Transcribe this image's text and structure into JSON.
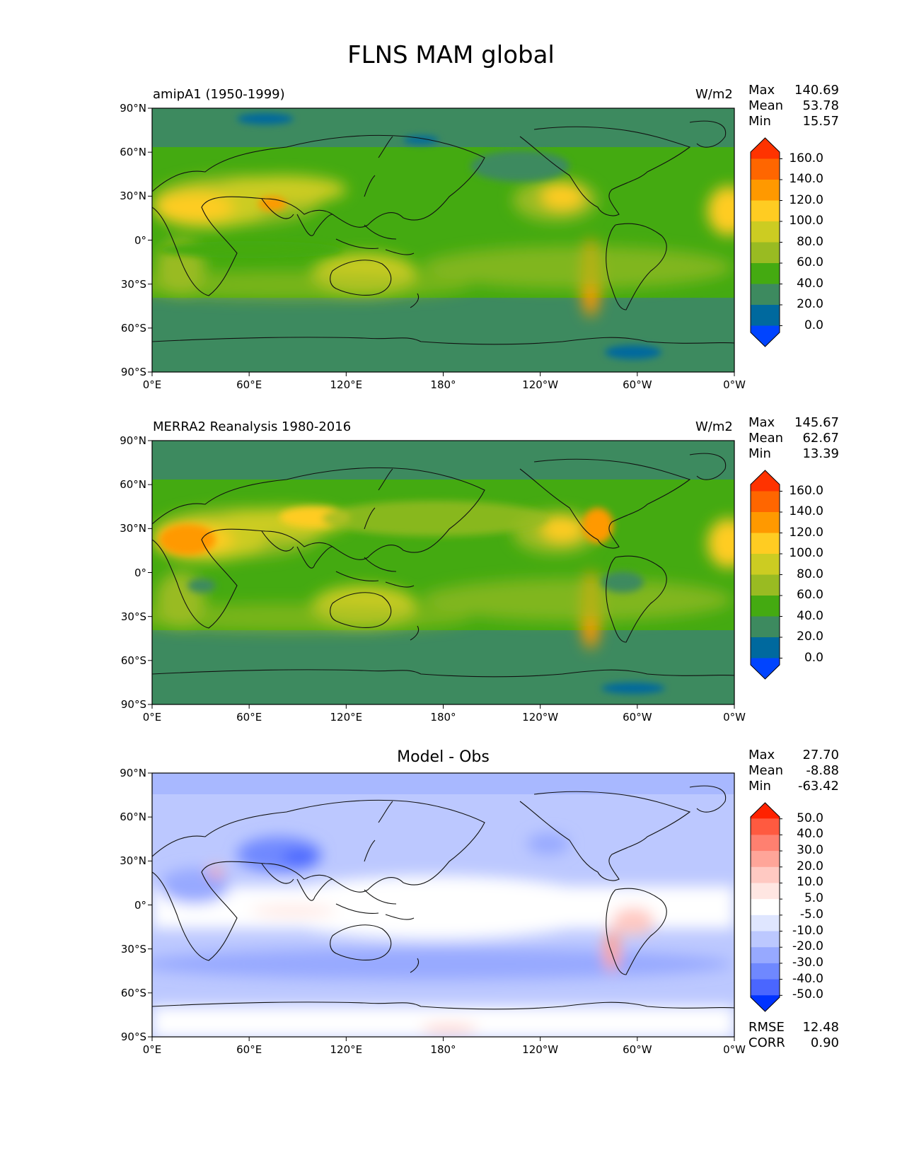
{
  "title": "FLNS MAM global",
  "units_label": "W/m2",
  "diff_title": "Model - Obs",
  "lat_ticks": [
    "90°N",
    "60°N",
    "30°N",
    "0°",
    "30°S",
    "60°S",
    "90°S"
  ],
  "lon_ticks": [
    "0°E",
    "60°E",
    "120°E",
    "180°",
    "120°W",
    "60°W",
    "0°W"
  ],
  "stat_labels": {
    "max": "Max",
    "mean": "Mean",
    "min": "Min",
    "rmse": "RMSE",
    "corr": "CORR"
  },
  "panels": [
    {
      "label": "amipA1 (1950-1999)",
      "max": "140.69",
      "mean": "53.78",
      "min": "15.57",
      "colorbar": {
        "labels": [
          "160.0",
          "140.0",
          "120.0",
          "100.0",
          "80.0",
          "60.0",
          "40.0",
          "20.0",
          "0.0"
        ],
        "colors": [
          "#ff3300",
          "#ff6600",
          "#ff9900",
          "#ffcc22",
          "#cccc22",
          "#99bb22",
          "#44aa11",
          "#3d8a5f",
          "#00699e",
          "#0044ff"
        ]
      }
    },
    {
      "label": "MERRA2 Reanalysis 1980-2016",
      "max": "145.67",
      "mean": "62.67",
      "min": "13.39",
      "colorbar": {
        "labels": [
          "160.0",
          "140.0",
          "120.0",
          "100.0",
          "80.0",
          "60.0",
          "40.0",
          "20.0",
          "0.0"
        ],
        "colors": [
          "#ff3300",
          "#ff6600",
          "#ff9900",
          "#ffcc22",
          "#cccc22",
          "#99bb22",
          "#44aa11",
          "#3d8a5f",
          "#00699e",
          "#0044ff"
        ]
      }
    },
    {
      "label": "",
      "max": "27.70",
      "mean": "-8.88",
      "min": "-63.42",
      "rmse": "12.48",
      "corr": "0.90",
      "colorbar": {
        "labels": [
          "50.0",
          "40.0",
          "30.0",
          "20.0",
          "10.0",
          "5.0",
          "-5.0",
          "-10.0",
          "-20.0",
          "-30.0",
          "-40.0",
          "-50.0"
        ],
        "colors": [
          "#ff2200",
          "#ff5a40",
          "#ff8070",
          "#ffa599",
          "#ffc9c2",
          "#ffe6e2",
          "#ffffff",
          "#dfe6ff",
          "#bcc8ff",
          "#97a9ff",
          "#6f88ff",
          "#4a66ff",
          "#0033ff"
        ]
      }
    }
  ]
}
